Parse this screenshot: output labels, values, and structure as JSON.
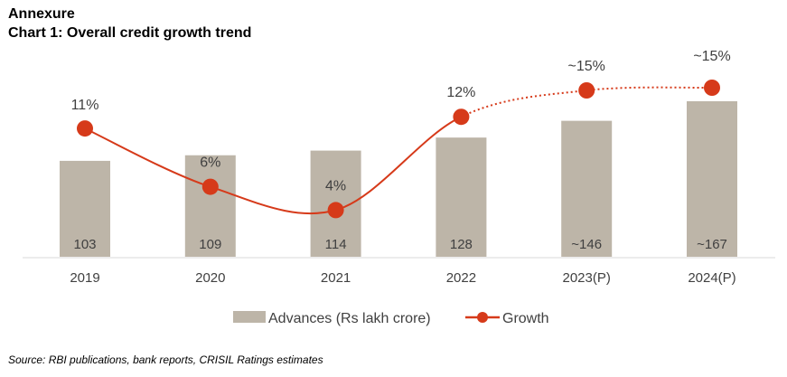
{
  "heading": "Annexure",
  "chart_data": {
    "type": "bar+line",
    "title": "Chart 1: Overall credit growth trend",
    "categories": [
      "2019",
      "2020",
      "2021",
      "2022",
      "2023(P)",
      "2024(P)"
    ],
    "series": [
      {
        "name": "Advances (Rs lakh crore)",
        "type": "bar",
        "values": [
          103,
          109,
          114,
          128,
          146,
          167
        ],
        "labels": [
          "103",
          "109",
          "114",
          "128",
          "~146",
          "~167"
        ],
        "color": "#bdb5a8"
      },
      {
        "name": "Growth",
        "type": "line",
        "values": [
          11,
          6,
          4,
          12,
          15,
          15
        ],
        "labels": [
          "11%",
          "6%",
          "4%",
          "12%",
          "~15%",
          "~15%"
        ],
        "color": "#d63a1a",
        "projected_from_index": 3
      }
    ],
    "legend_position": "bottom",
    "grid": false
  },
  "source": "Source: RBI publications, bank reports, CRISIL Ratings estimates"
}
